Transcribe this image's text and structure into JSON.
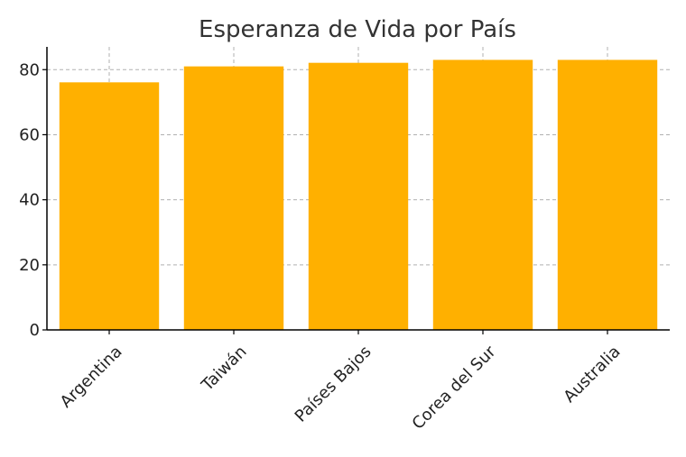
{
  "chart_data": {
    "type": "bar",
    "title": "Esperanza de Vida por País",
    "xlabel": "",
    "ylabel": "",
    "categories": [
      "Argentina",
      "Taiwán",
      "Países Bajos",
      "Corea del Sur",
      "Australia"
    ],
    "values": [
      76.1,
      81.0,
      82.1,
      83.0,
      83.0
    ],
    "ylim": [
      0,
      87
    ],
    "yticks": [
      0,
      20,
      40,
      60,
      80
    ],
    "grid": true,
    "bar_color": "#FFB000"
  }
}
